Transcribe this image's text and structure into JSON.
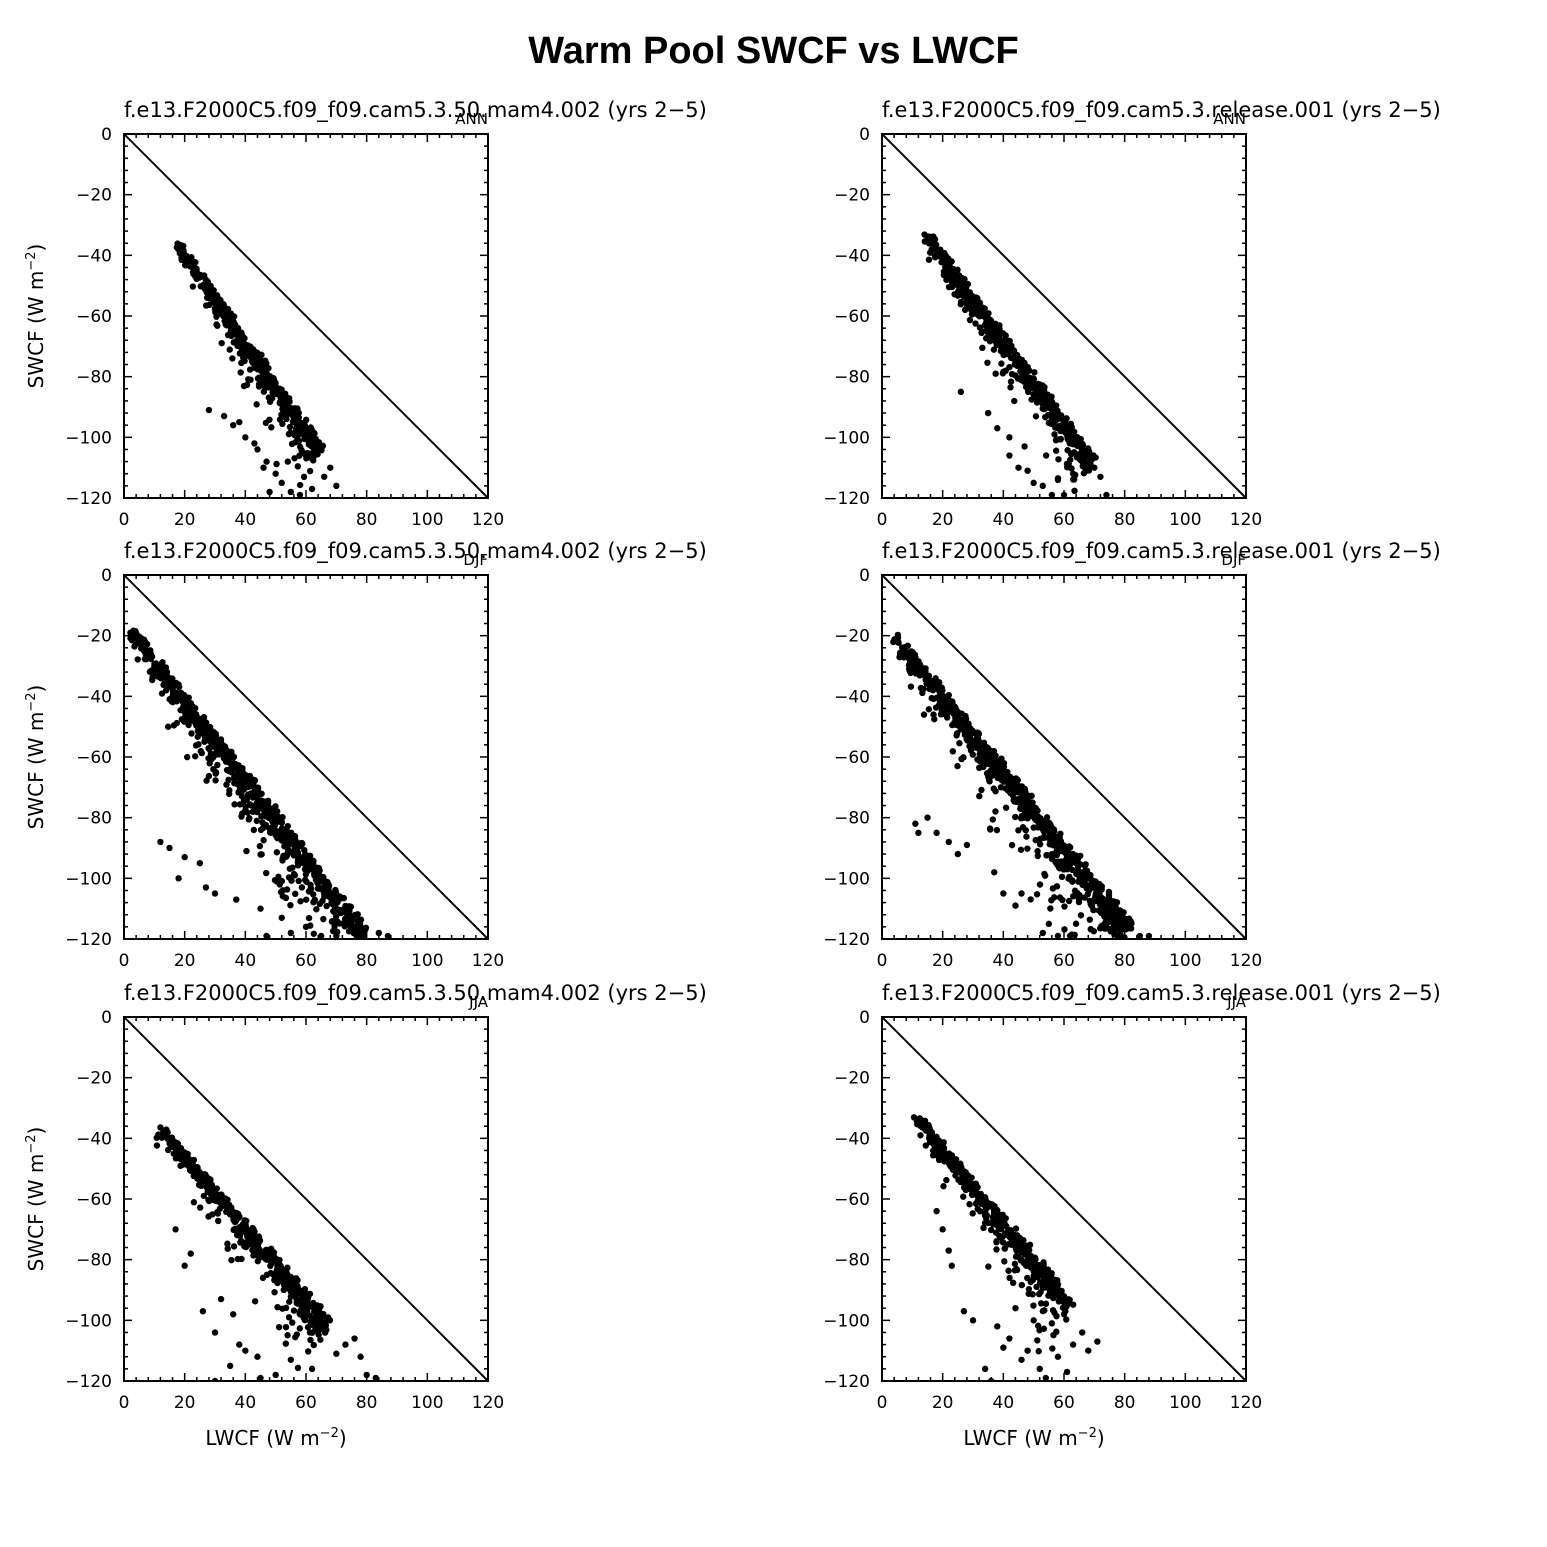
{
  "title": "Warm Pool SWCF vs LWCF",
  "axis_labels": {
    "x_main": "LWCF (W m",
    "y_main": "SWCF (W m",
    "unit_exp": "−2",
    "unit_close": ")"
  },
  "chart_data": [
    {
      "type": "scatter",
      "title": "f.e13.F2000C5.f09_f09.cam5.3.50.mam4.002 (yrs 2−5)",
      "season": "ANN",
      "xlim": [
        0,
        120
      ],
      "ylim": [
        -120,
        0
      ],
      "xticks": [
        0,
        20,
        40,
        60,
        80,
        100,
        120
      ],
      "yticks": [
        0,
        -20,
        -40,
        -60,
        -80,
        -100,
        -120
      ],
      "xlabel": "",
      "ylabel": "SWCF (W m−2)",
      "reference_line": "y = -x",
      "cloud": {
        "head": [
          18,
          -36
        ],
        "ridge_end": [
          65,
          -103
        ],
        "spread": 16,
        "x_max": 71,
        "n": 520
      },
      "outliers": [
        [
          28,
          -91
        ],
        [
          33,
          -93
        ],
        [
          36,
          -96
        ],
        [
          40,
          -100
        ],
        [
          44,
          -104
        ],
        [
          47,
          -108
        ],
        [
          50,
          -112
        ],
        [
          52,
          -115
        ],
        [
          55,
          -118
        ],
        [
          58,
          -119
        ],
        [
          48,
          -118
        ],
        [
          43,
          -102
        ],
        [
          46,
          -110
        ],
        [
          54,
          -108
        ],
        [
          62,
          -117
        ],
        [
          66,
          -113
        ],
        [
          68,
          -110
        ],
        [
          70,
          -116
        ],
        [
          38,
          -95
        ],
        [
          60,
          -106
        ]
      ]
    },
    {
      "type": "scatter",
      "title": "f.e13.F2000C5.f09_f09.cam5.3.release.001 (yrs 2−5)",
      "season": "ANN",
      "xlim": [
        0,
        120
      ],
      "ylim": [
        -120,
        0
      ],
      "xticks": [
        0,
        20,
        40,
        60,
        80,
        100,
        120
      ],
      "yticks": [
        0,
        -20,
        -40,
        -60,
        -80,
        -100,
        -120
      ],
      "xlabel": "",
      "ylabel": "",
      "reference_line": "y = -x",
      "cloud": {
        "head": [
          15,
          -33
        ],
        "ridge_end": [
          70,
          -107
        ],
        "spread": 17,
        "x_max": 77,
        "n": 540
      },
      "outliers": [
        [
          26,
          -85
        ],
        [
          35,
          -92
        ],
        [
          38,
          -97
        ],
        [
          42,
          -100
        ],
        [
          42,
          -106
        ],
        [
          45,
          -110
        ],
        [
          48,
          -111
        ],
        [
          50,
          -115
        ],
        [
          53,
          -116
        ],
        [
          56,
          -119
        ],
        [
          58,
          -114
        ],
        [
          63,
          -112
        ],
        [
          66,
          -108
        ],
        [
          70,
          -110
        ],
        [
          72,
          -113
        ],
        [
          74,
          -119
        ],
        [
          60,
          -119
        ],
        [
          47,
          -103
        ]
      ]
    },
    {
      "type": "scatter",
      "title": "f.e13.F2000C5.f09_f09.cam5.3.50.mam4.002 (yrs 2−5)",
      "season": "DJF",
      "xlim": [
        0,
        120
      ],
      "ylim": [
        -120,
        0
      ],
      "xticks": [
        0,
        20,
        40,
        60,
        80,
        100,
        120
      ],
      "yticks": [
        0,
        -20,
        -40,
        -60,
        -80,
        -100,
        -120
      ],
      "xlabel": "",
      "ylabel": "SWCF (W m−2)",
      "reference_line": "y = -x",
      "cloud": {
        "head": [
          3,
          -18
        ],
        "ridge_end": [
          80,
          -117
        ],
        "spread": 26,
        "x_max": 88,
        "n": 820
      },
      "outliers": [
        [
          12,
          -88
        ],
        [
          15,
          -90
        ],
        [
          20,
          -93
        ],
        [
          27,
          -103
        ],
        [
          30,
          -105
        ],
        [
          37,
          -107
        ],
        [
          45,
          -110
        ],
        [
          52,
          -113
        ],
        [
          55,
          -118
        ],
        [
          60,
          -116
        ],
        [
          65,
          -119
        ],
        [
          70,
          -119
        ],
        [
          84,
          -118
        ],
        [
          87,
          -119
        ],
        [
          47,
          -119
        ],
        [
          18,
          -100
        ],
        [
          25,
          -95
        ]
      ]
    },
    {
      "type": "scatter",
      "title": "f.e13.F2000C5.f09_f09.cam5.3.release.001 (yrs 2−5)",
      "season": "DJF",
      "xlim": [
        0,
        120
      ],
      "ylim": [
        -120,
        0
      ],
      "xticks": [
        0,
        20,
        40,
        60,
        80,
        100,
        120
      ],
      "yticks": [
        0,
        -20,
        -40,
        -60,
        -80,
        -100,
        -120
      ],
      "xlabel": "",
      "ylabel": "",
      "reference_line": "y = -x",
      "cloud": {
        "head": [
          5,
          -20
        ],
        "ridge_end": [
          82,
          -115
        ],
        "spread": 27,
        "x_max": 88,
        "n": 840
      },
      "outliers": [
        [
          11,
          -82
        ],
        [
          12,
          -85
        ],
        [
          15,
          -80
        ],
        [
          18,
          -85
        ],
        [
          22,
          -88
        ],
        [
          25,
          -92
        ],
        [
          28,
          -89
        ],
        [
          37,
          -98
        ],
        [
          40,
          -105
        ],
        [
          44,
          -109
        ],
        [
          46,
          -105
        ],
        [
          53,
          -118
        ],
        [
          55,
          -115
        ],
        [
          58,
          -119
        ],
        [
          62,
          -119
        ],
        [
          85,
          -119
        ],
        [
          88,
          -119
        ]
      ]
    },
    {
      "type": "scatter",
      "title": "f.e13.F2000C5.f09_f09.cam5.3.50.mam4.002 (yrs 2−5)",
      "season": "JJA",
      "xlim": [
        0,
        120
      ],
      "ylim": [
        -120,
        0
      ],
      "xticks": [
        0,
        20,
        40,
        60,
        80,
        100,
        120
      ],
      "yticks": [
        0,
        -20,
        -40,
        -60,
        -80,
        -100,
        -120
      ],
      "xlabel": "LWCF (W m−2)",
      "ylabel": "SWCF (W m−2)",
      "reference_line": "y = -x",
      "cloud": {
        "head": [
          12,
          -36
        ],
        "ridge_end": [
          68,
          -100
        ],
        "spread": 20,
        "x_max": 81,
        "n": 520
      },
      "outliers": [
        [
          17,
          -70
        ],
        [
          20,
          -82
        ],
        [
          22,
          -78
        ],
        [
          26,
          -97
        ],
        [
          30,
          -104
        ],
        [
          30,
          -120
        ],
        [
          35,
          -115
        ],
        [
          38,
          -108
        ],
        [
          40,
          -110
        ],
        [
          44,
          -112
        ],
        [
          45,
          -119
        ],
        [
          50,
          -118
        ],
        [
          55,
          -113
        ],
        [
          62,
          -116
        ],
        [
          70,
          -111
        ],
        [
          73,
          -108
        ],
        [
          76,
          -106
        ],
        [
          78,
          -112
        ],
        [
          80,
          -118
        ],
        [
          83,
          -119
        ],
        [
          64,
          -99
        ],
        [
          58,
          -98
        ],
        [
          32,
          -93
        ],
        [
          36,
          -98
        ]
      ]
    },
    {
      "type": "scatter",
      "title": "f.e13.F2000C5.f09_f09.cam5.3.release.001 (yrs 2−5)",
      "season": "JJA",
      "xlim": [
        0,
        120
      ],
      "ylim": [
        -120,
        0
      ],
      "xticks": [
        0,
        20,
        40,
        60,
        80,
        100,
        120
      ],
      "yticks": [
        0,
        -20,
        -40,
        -60,
        -80,
        -100,
        -120
      ],
      "xlabel": "LWCF (W m−2)",
      "ylabel": "",
      "reference_line": "y = -x",
      "cloud": {
        "head": [
          12,
          -33
        ],
        "ridge_end": [
          63,
          -94
        ],
        "spread": 20,
        "x_max": 72,
        "n": 520
      },
      "outliers": [
        [
          18,
          -64
        ],
        [
          20,
          -70
        ],
        [
          22,
          -77
        ],
        [
          23,
          -82
        ],
        [
          27,
          -97
        ],
        [
          30,
          -100
        ],
        [
          34,
          -116
        ],
        [
          36,
          -120
        ],
        [
          38,
          -102
        ],
        [
          40,
          -109
        ],
        [
          42,
          -106
        ],
        [
          46,
          -113
        ],
        [
          48,
          -110
        ],
        [
          52,
          -116
        ],
        [
          54,
          -119
        ],
        [
          58,
          -112
        ],
        [
          61,
          -117
        ],
        [
          63,
          -108
        ],
        [
          66,
          -104
        ],
        [
          68,
          -110
        ],
        [
          71,
          -107
        ],
        [
          44,
          -96
        ],
        [
          50,
          -100
        ],
        [
          56,
          -101
        ],
        [
          60,
          -98
        ]
      ]
    }
  ]
}
